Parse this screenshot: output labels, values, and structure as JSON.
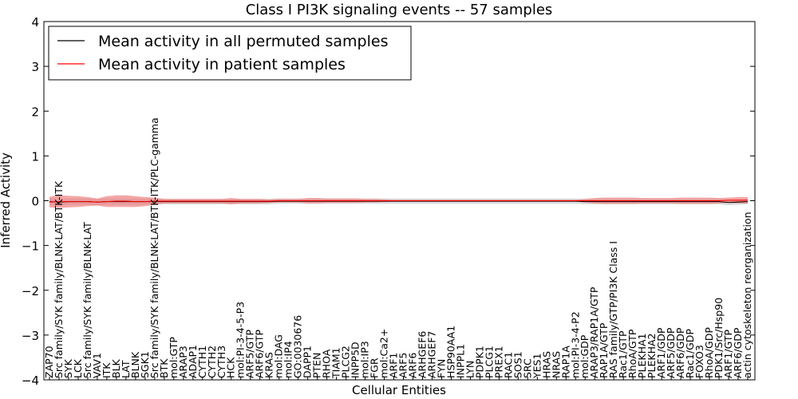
{
  "chart_data": {
    "type": "line",
    "title": "Class I PI3K signaling events -- 57 samples",
    "xlabel": "Cellular Entities",
    "ylabel": "Inferred Activity",
    "ylim": [
      -4,
      4
    ],
    "yticks": [
      -4,
      -3,
      -2,
      -1,
      0,
      1,
      2,
      3,
      4
    ],
    "ytick_labels": [
      "−4",
      "−3",
      "−2",
      "−1",
      "0",
      "1",
      "2",
      "3",
      "4"
    ],
    "grid": false,
    "legend_position": "top-left",
    "categories": [
      "ZAP70",
      "Src family/SYK family/BLNK-LAT/BTK-ITK",
      "SYK",
      "LCK",
      "Src family/SYK family/BLNK-LAT",
      "VAV1",
      "ITK",
      "BLK",
      "LAT",
      "BLNK",
      "SGK1",
      "Src family/SYK family/BLNK-LAT/BTK-ITK/PLC-gamma",
      "BTK",
      "mol:GTP",
      "ARAP3",
      "ADAP1",
      "CYTH1",
      "CYTH2",
      "CYTH3",
      "HCK",
      "mol:PI-3-4-5-P3",
      "ARF5/GTP",
      "ARF6/GTP",
      "KRAS",
      "mol:DAG",
      "mol:IP4",
      "GO:0030676",
      "DAPP1",
      "PTEN",
      "RHOA",
      "TIAM1",
      "PLCG2",
      "INPP5D",
      "mol:IP3",
      "FGR",
      "mol:Ca2+",
      "ARF1",
      "ARF5",
      "ARF6",
      "ARHGEF6",
      "ARHGEF7",
      "FYN",
      "HSP90AA1",
      "INPPL1",
      "LYN",
      "PDPK1",
      "PLCG1",
      "PREX1",
      "RAC1",
      "SOS1",
      "SRC",
      "YES1",
      "HRAS",
      "NRAS",
      "RAP1A",
      "mol:PI-3-4-P2",
      "mol:GDP",
      "ARAP3/RAP1A/GTP",
      "RAP1A/GTP",
      "RAS family/GTP/PI3K Class I",
      "Rac1/GTP",
      "RhoA/GTP",
      "PLEKHA1",
      "PLEKHA2",
      "ARF1/GDP",
      "ARF5/GDP",
      "ARF6/GDP",
      "Rac1/GDP",
      "FOXO3",
      "RhoA/GDP",
      "PDK1/Src/Hsp90",
      "ARF1/GTP",
      "ARF6/GDP",
      "actin cytoskeleton reorganization"
    ],
    "series": [
      {
        "name": "Mean activity in all permuted samples",
        "color": "#000000",
        "band_color": "#bbbbbb",
        "values": [
          -0.02,
          -0.03,
          -0.02,
          -0.02,
          -0.02,
          -0.03,
          -0.02,
          -0.02,
          -0.02,
          -0.02,
          -0.02,
          -0.02,
          -0.02,
          -0.02,
          -0.02,
          -0.02,
          -0.02,
          -0.02,
          -0.02,
          -0.02,
          -0.02,
          -0.02,
          -0.02,
          -0.02,
          -0.01,
          -0.01,
          -0.01,
          -0.01,
          -0.01,
          -0.01,
          -0.01,
          -0.01,
          -0.01,
          -0.01,
          -0.01,
          -0.01,
          -0.01,
          -0.01,
          -0.01,
          -0.01,
          -0.01,
          -0.01,
          -0.01,
          -0.01,
          -0.01,
          -0.01,
          -0.01,
          -0.01,
          -0.01,
          -0.01,
          -0.01,
          -0.01,
          -0.01,
          -0.01,
          -0.01,
          -0.01,
          -0.02,
          -0.02,
          -0.02,
          -0.02,
          -0.02,
          -0.02,
          -0.02,
          -0.02,
          -0.02,
          -0.02,
          -0.02,
          -0.02,
          -0.02,
          -0.02,
          -0.02,
          -0.04,
          -0.03,
          -0.02
        ],
        "band_halfwidth": [
          0.08,
          0.08,
          0.07,
          0.07,
          0.07,
          0.07,
          0.07,
          0.07,
          0.07,
          0.07,
          0.07,
          0.07,
          0.06,
          0.06,
          0.06,
          0.06,
          0.06,
          0.06,
          0.06,
          0.06,
          0.06,
          0.06,
          0.06,
          0.06,
          0.06,
          0.06,
          0.06,
          0.06,
          0.06,
          0.06,
          0.06,
          0.06,
          0.06,
          0.06,
          0.06,
          0.06,
          0.06,
          0.06,
          0.06,
          0.06,
          0.06,
          0.06,
          0.06,
          0.06,
          0.06,
          0.06,
          0.06,
          0.06,
          0.06,
          0.06,
          0.06,
          0.06,
          0.06,
          0.06,
          0.06,
          0.06,
          0.06,
          0.06,
          0.06,
          0.06,
          0.06,
          0.06,
          0.06,
          0.06,
          0.06,
          0.06,
          0.06,
          0.06,
          0.06,
          0.06,
          0.06,
          0.06,
          0.06,
          0.06
        ]
      },
      {
        "name": "Mean activity in patient samples",
        "color": "#ff0000",
        "band_color": "#f08080",
        "values": [
          -0.03,
          -0.02,
          -0.02,
          -0.02,
          -0.02,
          -0.03,
          -0.02,
          -0.01,
          -0.01,
          -0.02,
          -0.02,
          -0.01,
          -0.01,
          -0.01,
          -0.01,
          -0.01,
          -0.01,
          -0.01,
          -0.01,
          -0.01,
          -0.01,
          -0.01,
          -0.01,
          -0.01,
          0.0,
          0.0,
          0.0,
          0.0,
          0.0,
          0.0,
          0.0,
          0.0,
          0.0,
          0.0,
          0.0,
          0.0,
          0.0,
          0.0,
          0.0,
          0.0,
          0.0,
          0.0,
          0.0,
          0.0,
          0.0,
          0.0,
          0.0,
          0.0,
          0.0,
          0.0,
          0.0,
          0.0,
          0.0,
          0.0,
          0.0,
          0.0,
          0.0,
          0.0,
          0.0,
          0.0,
          0.0,
          0.0,
          0.0,
          0.0,
          0.0,
          0.0,
          0.0,
          0.0,
          0.0,
          0.0,
          0.0,
          0.01,
          0.01,
          0.01
        ],
        "band_halfwidth": [
          0.12,
          0.14,
          0.13,
          0.12,
          0.1,
          0.08,
          0.12,
          0.13,
          0.13,
          0.12,
          0.1,
          0.08,
          0.05,
          0.05,
          0.05,
          0.05,
          0.05,
          0.05,
          0.05,
          0.07,
          0.05,
          0.05,
          0.05,
          0.04,
          0.04,
          0.04,
          0.04,
          0.06,
          0.06,
          0.05,
          0.05,
          0.05,
          0.05,
          0.04,
          0.04,
          0.03,
          0.02,
          0.02,
          0.02,
          0.02,
          0.02,
          0.02,
          0.02,
          0.02,
          0.02,
          0.02,
          0.02,
          0.02,
          0.02,
          0.02,
          0.02,
          0.02,
          0.02,
          0.02,
          0.02,
          0.02,
          0.04,
          0.06,
          0.07,
          0.07,
          0.07,
          0.07,
          0.06,
          0.06,
          0.06,
          0.06,
          0.07,
          0.07,
          0.07,
          0.07,
          0.06,
          0.06,
          0.07,
          0.07
        ]
      }
    ]
  }
}
